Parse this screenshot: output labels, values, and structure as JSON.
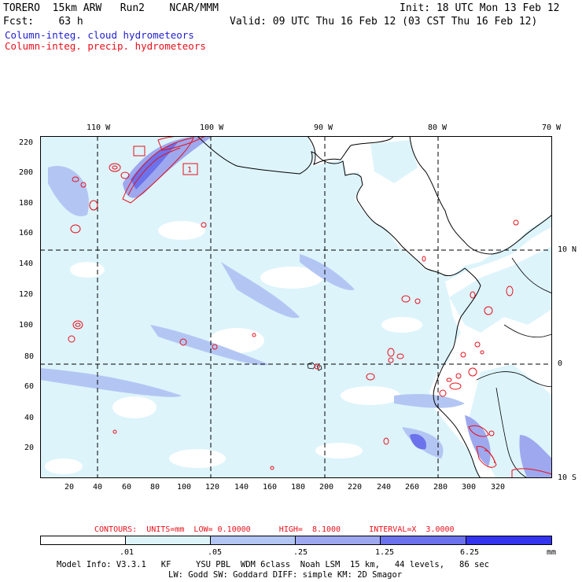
{
  "header": {
    "line1_left": "TORERO  15km ARW   Run2    NCAR/MMM",
    "line1_right": "Init: 18 UTC Mon 13 Feb 12",
    "line2_left": "Fcst:    63 h",
    "line2_right": "Valid: 09 UTC Thu 16 Feb 12 (03 CST Thu 16 Feb 12)",
    "field1": "Column-integ. cloud hydrometeors",
    "field2": "Column-integ. precip. hydrometeors"
  },
  "map": {
    "lon_labels": [
      "110 W",
      "100 W",
      "90 W",
      "80 W",
      "70 W"
    ],
    "lat_labels": [
      "10 N",
      "0",
      "10 S"
    ],
    "x_ticks": [
      "20",
      "40",
      "60",
      "80",
      "100",
      "120",
      "140",
      "160",
      "180",
      "200",
      "220",
      "240",
      "260",
      "280",
      "300",
      "320"
    ],
    "y_ticks": [
      "220",
      "200",
      "180",
      "160",
      "140",
      "120",
      "100",
      "80",
      "60",
      "40",
      "20"
    ],
    "box_label": "1"
  },
  "contours": {
    "text": "CONTOURS:  UNITS=mm  LOW= 0.10000      HIGH=  8.1000      INTERVAL=X  3.0000"
  },
  "colorbar": {
    "labels": [
      ".01",
      ".05",
      ".25",
      "1.25",
      "6.25"
    ],
    "unit": "mm",
    "colors": [
      "#ffffff",
      "#ddf4fb",
      "#b3c6f3",
      "#9ea8ee",
      "#6c72eb",
      "#3434ee",
      "#1010f0"
    ]
  },
  "footer": {
    "line1": "Model Info: V3.3.1   KF     YSU PBL  WDM 6class  Noah LSM  15 km,   44 levels,   86 sec",
    "line2": "LW: Godd SW: Goddard DIFF: simple KM: 2D Smagor"
  }
}
